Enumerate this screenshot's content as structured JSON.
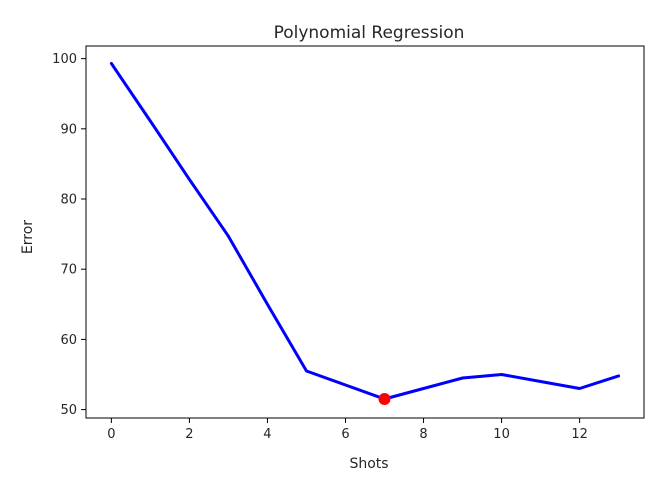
{
  "chart_data": {
    "type": "line",
    "title": "Polynomial Regression",
    "xlabel": "Shots",
    "ylabel": "Error",
    "xlim": [
      -0.65,
      13.65
    ],
    "ylim": [
      48.8,
      101.8
    ],
    "xticks": [
      0,
      2,
      4,
      6,
      8,
      10,
      12
    ],
    "yticks": [
      50,
      60,
      70,
      80,
      90,
      100
    ],
    "grid": false,
    "series": [
      {
        "color": "#0000ff",
        "x": [
          0,
          1,
          2,
          3,
          4,
          5,
          6,
          7,
          8,
          9,
          10,
          11,
          12,
          13
        ],
        "y": [
          99.3,
          91.1,
          82.8,
          74.7,
          65.0,
          55.5,
          53.5,
          51.5,
          53.0,
          54.5,
          55.0,
          54.0,
          53.0,
          54.8
        ]
      }
    ],
    "highlight": {
      "x": 7,
      "y": 51.5,
      "color": "#ff0000",
      "marker": "circle"
    }
  }
}
